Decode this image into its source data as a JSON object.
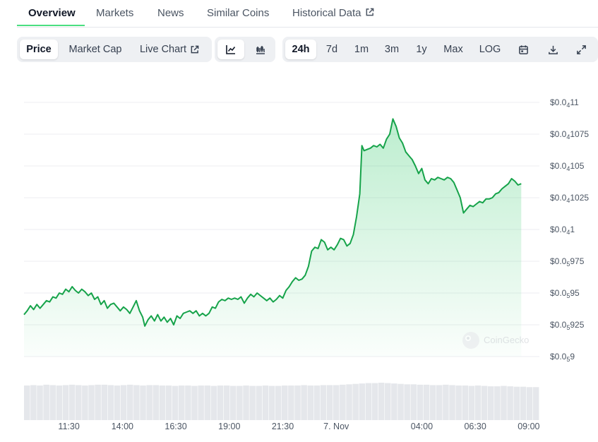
{
  "tabs": [
    {
      "label": "Overview",
      "active": true
    },
    {
      "label": "Markets"
    },
    {
      "label": "News"
    },
    {
      "label": "Similar Coins"
    },
    {
      "label": "Historical Data",
      "icon": "external-link-icon"
    }
  ],
  "toolbar": {
    "type_buttons": [
      {
        "label": "Price",
        "active": true
      },
      {
        "label": "Market Cap"
      },
      {
        "label": "Live Chart",
        "icon": "external-link-icon"
      }
    ],
    "view_buttons": [
      {
        "icon": "line-chart-icon",
        "active": true
      },
      {
        "icon": "candlestick-chart-icon"
      }
    ],
    "range_buttons": [
      {
        "label": "24h",
        "active": true
      },
      {
        "label": "7d"
      },
      {
        "label": "1m"
      },
      {
        "label": "3m"
      },
      {
        "label": "1y"
      },
      {
        "label": "Max"
      },
      {
        "label": "LOG"
      }
    ],
    "action_icons": [
      "calendar-icon",
      "download-icon",
      "fullscreen-icon"
    ]
  },
  "watermark": "CoinGecko",
  "colors": {
    "line": "#16a34a",
    "fill": "#22c55e",
    "grid": "#eceef1",
    "volume": "#e5e7eb"
  },
  "chart_data": {
    "type": "area",
    "ylim": [
      9e-07,
      1.1e-06
    ],
    "yticks": [
      {
        "value": 1.1e-06,
        "prefix": "$0.0",
        "sub": "4",
        "digits": "11"
      },
      {
        "value": 1.075e-06,
        "prefix": "$0.0",
        "sub": "4",
        "digits": "1075"
      },
      {
        "value": 1.05e-06,
        "prefix": "$0.0",
        "sub": "4",
        "digits": "105"
      },
      {
        "value": 1.025e-06,
        "prefix": "$0.0",
        "sub": "4",
        "digits": "1025"
      },
      {
        "value": 1e-06,
        "prefix": "$0.0",
        "sub": "4",
        "digits": "1"
      },
      {
        "value": 9.75e-07,
        "prefix": "$0.0",
        "sub": "5",
        "digits": "975"
      },
      {
        "value": 9.5e-07,
        "prefix": "$0.0",
        "sub": "5",
        "digits": "95"
      },
      {
        "value": 9.25e-07,
        "prefix": "$0.0",
        "sub": "5",
        "digits": "925"
      },
      {
        "value": 9e-07,
        "prefix": "$0.0",
        "sub": "5",
        "digits": "9"
      }
    ],
    "xticks": [
      {
        "label": "11:30",
        "t": 11.5
      },
      {
        "label": "14:00",
        "t": 14.0
      },
      {
        "label": "16:30",
        "t": 16.5
      },
      {
        "label": "19:00",
        "t": 19.0
      },
      {
        "label": "21:30",
        "t": 21.5
      },
      {
        "label": "7. Nov",
        "t": 24.0
      },
      {
        "label": "04:00",
        "t": 28.0
      },
      {
        "label": "06:30",
        "t": 30.5
      },
      {
        "label": "09:00",
        "t": 33.0
      }
    ],
    "x_range_hours": [
      9.4,
      33.5
    ],
    "price_series": [
      [
        9.4,
        9.33e-07
      ],
      [
        9.55,
        9.36e-07
      ],
      [
        9.7,
        9.4e-07
      ],
      [
        9.85,
        9.37e-07
      ],
      [
        10.0,
        9.41e-07
      ],
      [
        10.15,
        9.38e-07
      ],
      [
        10.3,
        9.41e-07
      ],
      [
        10.45,
        9.44e-07
      ],
      [
        10.6,
        9.43e-07
      ],
      [
        10.75,
        9.47e-07
      ],
      [
        10.9,
        9.46e-07
      ],
      [
        11.05,
        9.5e-07
      ],
      [
        11.2,
        9.49e-07
      ],
      [
        11.35,
        9.53e-07
      ],
      [
        11.5,
        9.51e-07
      ],
      [
        11.65,
        9.55e-07
      ],
      [
        11.8,
        9.52e-07
      ],
      [
        11.95,
        9.5e-07
      ],
      [
        12.1,
        9.53e-07
      ],
      [
        12.25,
        9.51e-07
      ],
      [
        12.4,
        9.48e-07
      ],
      [
        12.55,
        9.5e-07
      ],
      [
        12.7,
        9.45e-07
      ],
      [
        12.85,
        9.47e-07
      ],
      [
        13.0,
        9.41e-07
      ],
      [
        13.15,
        9.44e-07
      ],
      [
        13.3,
        9.38e-07
      ],
      [
        13.45,
        9.41e-07
      ],
      [
        13.6,
        9.42e-07
      ],
      [
        13.75,
        9.39e-07
      ],
      [
        13.9,
        9.36e-07
      ],
      [
        14.05,
        9.39e-07
      ],
      [
        14.2,
        9.37e-07
      ],
      [
        14.35,
        9.34e-07
      ],
      [
        14.5,
        9.39e-07
      ],
      [
        14.65,
        9.44e-07
      ],
      [
        14.8,
        9.36e-07
      ],
      [
        14.95,
        9.31e-07
      ],
      [
        15.05,
        9.24e-07
      ],
      [
        15.2,
        9.29e-07
      ],
      [
        15.35,
        9.32e-07
      ],
      [
        15.5,
        9.28e-07
      ],
      [
        15.65,
        9.33e-07
      ],
      [
        15.8,
        9.28e-07
      ],
      [
        15.95,
        9.31e-07
      ],
      [
        16.1,
        9.27e-07
      ],
      [
        16.25,
        9.3e-07
      ],
      [
        16.4,
        9.25e-07
      ],
      [
        16.55,
        9.32e-07
      ],
      [
        16.7,
        9.3e-07
      ],
      [
        16.85,
        9.34e-07
      ],
      [
        17.0,
        9.35e-07
      ],
      [
        17.15,
        9.36e-07
      ],
      [
        17.3,
        9.34e-07
      ],
      [
        17.45,
        9.36e-07
      ],
      [
        17.6,
        9.32e-07
      ],
      [
        17.75,
        9.34e-07
      ],
      [
        17.9,
        9.32e-07
      ],
      [
        18.05,
        9.34e-07
      ],
      [
        18.2,
        9.39e-07
      ],
      [
        18.35,
        9.38e-07
      ],
      [
        18.5,
        9.43e-07
      ],
      [
        18.65,
        9.45e-07
      ],
      [
        18.8,
        9.44e-07
      ],
      [
        18.95,
        9.46e-07
      ],
      [
        19.1,
        9.45e-07
      ],
      [
        19.25,
        9.46e-07
      ],
      [
        19.4,
        9.45e-07
      ],
      [
        19.55,
        9.47e-07
      ],
      [
        19.7,
        9.42e-07
      ],
      [
        19.85,
        9.46e-07
      ],
      [
        20.0,
        9.49e-07
      ],
      [
        20.15,
        9.47e-07
      ],
      [
        20.3,
        9.5e-07
      ],
      [
        20.45,
        9.48e-07
      ],
      [
        20.6,
        9.46e-07
      ],
      [
        20.75,
        9.44e-07
      ],
      [
        20.9,
        9.46e-07
      ],
      [
        21.05,
        9.43e-07
      ],
      [
        21.2,
        9.45e-07
      ],
      [
        21.35,
        9.48e-07
      ],
      [
        21.5,
        9.46e-07
      ],
      [
        21.65,
        9.52e-07
      ],
      [
        21.8,
        9.55e-07
      ],
      [
        21.95,
        9.59e-07
      ],
      [
        22.1,
        9.62e-07
      ],
      [
        22.25,
        9.6e-07
      ],
      [
        22.4,
        9.61e-07
      ],
      [
        22.55,
        9.64e-07
      ],
      [
        22.7,
        9.71e-07
      ],
      [
        22.85,
        9.83e-07
      ],
      [
        23.0,
        9.86e-07
      ],
      [
        23.15,
        9.85e-07
      ],
      [
        23.3,
        9.92e-07
      ],
      [
        23.45,
        9.9e-07
      ],
      [
        23.6,
        9.84e-07
      ],
      [
        23.75,
        9.86e-07
      ],
      [
        23.9,
        9.84e-07
      ],
      [
        24.05,
        9.88e-07
      ],
      [
        24.2,
        9.93e-07
      ],
      [
        24.35,
        9.92e-07
      ],
      [
        24.5,
        9.87e-07
      ],
      [
        24.65,
        9.89e-07
      ],
      [
        24.8,
        9.96e-07
      ],
      [
        24.95,
        1.01e-06
      ],
      [
        25.1,
        1.028e-06
      ],
      [
        25.2,
        1.066e-06
      ],
      [
        25.3,
        1.062e-06
      ],
      [
        25.45,
        1.063e-06
      ],
      [
        25.6,
        1.064e-06
      ],
      [
        25.75,
        1.066e-06
      ],
      [
        25.9,
        1.065e-06
      ],
      [
        26.05,
        1.067e-06
      ],
      [
        26.2,
        1.064e-06
      ],
      [
        26.35,
        1.071e-06
      ],
      [
        26.5,
        1.075e-06
      ],
      [
        26.65,
        1.087e-06
      ],
      [
        26.8,
        1.081e-06
      ],
      [
        26.95,
        1.072e-06
      ],
      [
        27.1,
        1.068e-06
      ],
      [
        27.25,
        1.061e-06
      ],
      [
        27.4,
        1.058e-06
      ],
      [
        27.55,
        1.055e-06
      ],
      [
        27.7,
        1.05e-06
      ],
      [
        27.85,
        1.044e-06
      ],
      [
        28.0,
        1.048e-06
      ],
      [
        28.15,
        1.039e-06
      ],
      [
        28.3,
        1.036e-06
      ],
      [
        28.45,
        1.04e-06
      ],
      [
        28.6,
        1.039e-06
      ],
      [
        28.75,
        1.041e-06
      ],
      [
        28.9,
        1.04e-06
      ],
      [
        29.05,
        1.039e-06
      ],
      [
        29.2,
        1.041e-06
      ],
      [
        29.35,
        1.04e-06
      ],
      [
        29.5,
        1.037e-06
      ],
      [
        29.65,
        1.031e-06
      ],
      [
        29.8,
        1.025e-06
      ],
      [
        29.95,
        1.013e-06
      ],
      [
        30.1,
        1.016e-06
      ],
      [
        30.25,
        1.019e-06
      ],
      [
        30.4,
        1.018e-06
      ],
      [
        30.55,
        1.02e-06
      ],
      [
        30.7,
        1.022e-06
      ],
      [
        30.85,
        1.021e-06
      ],
      [
        31.0,
        1.024e-06
      ],
      [
        31.15,
        1.024e-06
      ],
      [
        31.3,
        1.025e-06
      ],
      [
        31.45,
        1.028e-06
      ],
      [
        31.6,
        1.029e-06
      ],
      [
        31.75,
        1.032e-06
      ],
      [
        31.9,
        1.034e-06
      ],
      [
        32.05,
        1.036e-06
      ],
      [
        32.2,
        1.04e-06
      ],
      [
        32.35,
        1.038e-06
      ],
      [
        32.5,
        1.035e-06
      ],
      [
        32.65,
        1.036e-06
      ]
    ],
    "volume_series": [
      0.86,
      0.87,
      0.86,
      0.88,
      0.87,
      0.86,
      0.87,
      0.88,
      0.87,
      0.86,
      0.87,
      0.88,
      0.88,
      0.87,
      0.86,
      0.87,
      0.88,
      0.87,
      0.86,
      0.87,
      0.87,
      0.86,
      0.86,
      0.85,
      0.86,
      0.86,
      0.85,
      0.86,
      0.86,
      0.85,
      0.86,
      0.86,
      0.85,
      0.85,
      0.86,
      0.85,
      0.85,
      0.86,
      0.85,
      0.85,
      0.86,
      0.86,
      0.86,
      0.87,
      0.86,
      0.86,
      0.87,
      0.87,
      0.87,
      0.88,
      0.89,
      0.9,
      0.91,
      0.92,
      0.92,
      0.93,
      0.92,
      0.91,
      0.9,
      0.89,
      0.89,
      0.88,
      0.88,
      0.87,
      0.87,
      0.88,
      0.87,
      0.86,
      0.86,
      0.85,
      0.86,
      0.85,
      0.84,
      0.84,
      0.85,
      0.84,
      0.83,
      0.83,
      0.82,
      0.82
    ]
  }
}
